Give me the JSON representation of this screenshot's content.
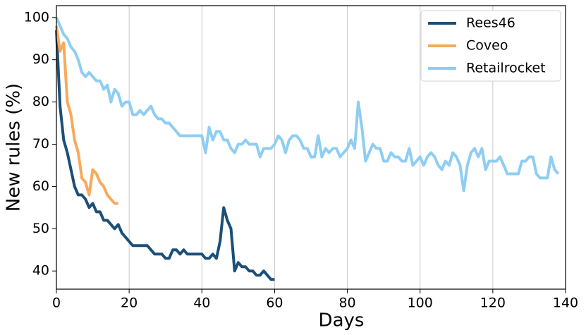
{
  "chart_data": {
    "type": "line",
    "xlabel": "Days",
    "ylabel": "New rules (%)",
    "xlim": [
      0,
      140
    ],
    "ylim": [
      35.7,
      102.8
    ],
    "xticks": [
      0,
      20,
      40,
      60,
      80,
      100,
      120,
      140
    ],
    "yticks": [
      40,
      50,
      60,
      70,
      80,
      90,
      100
    ],
    "grid": "x",
    "legend": "upper right",
    "series": [
      {
        "name": "Rees46",
        "color": "#1b4f78",
        "x": [
          0,
          1,
          2,
          3,
          4,
          5,
          6,
          7,
          8,
          9,
          10,
          11,
          12,
          13,
          14,
          15,
          16,
          17,
          18,
          19,
          20,
          21,
          22,
          23,
          24,
          25,
          26,
          27,
          28,
          29,
          30,
          31,
          32,
          33,
          34,
          35,
          36,
          37,
          38,
          39,
          40,
          41,
          42,
          43,
          44,
          45,
          46,
          47,
          48,
          49,
          50,
          51,
          52,
          53,
          54,
          55,
          56,
          57,
          58,
          59,
          60
        ],
        "values": [
          97,
          79,
          71,
          68,
          64,
          60,
          58,
          58,
          57,
          55,
          56,
          54,
          54,
          52,
          52,
          51,
          50,
          51,
          49,
          48,
          47,
          46,
          46,
          46,
          46,
          46,
          45,
          44,
          44,
          44,
          43,
          43,
          45,
          45,
          44,
          45,
          44,
          44,
          44,
          44,
          44,
          43,
          43,
          44,
          43,
          47,
          55,
          52,
          50,
          40,
          42,
          41,
          41,
          40,
          40,
          39,
          39,
          40,
          39,
          38,
          38
        ]
      },
      {
        "name": "Coveo",
        "color": "#f8a95c",
        "x": [
          0,
          1,
          2,
          3,
          4,
          5,
          6,
          7,
          8,
          9,
          10,
          11,
          12,
          13,
          14,
          15,
          16,
          17
        ],
        "values": [
          98,
          92,
          94,
          80,
          77,
          71,
          68,
          62,
          61,
          58,
          64,
          63,
          61,
          60,
          58,
          57,
          56,
          56
        ]
      },
      {
        "name": "Retailrocket",
        "color": "#8fcdf3",
        "x": [
          0,
          1,
          2,
          3,
          4,
          5,
          6,
          7,
          8,
          9,
          10,
          11,
          12,
          13,
          14,
          15,
          16,
          17,
          18,
          19,
          20,
          21,
          22,
          23,
          24,
          25,
          26,
          27,
          28,
          29,
          30,
          31,
          32,
          33,
          34,
          35,
          36,
          37,
          38,
          39,
          40,
          41,
          42,
          43,
          44,
          45,
          46,
          47,
          48,
          49,
          50,
          51,
          52,
          53,
          54,
          55,
          56,
          57,
          58,
          59,
          60,
          61,
          62,
          63,
          64,
          65,
          66,
          67,
          68,
          69,
          70,
          71,
          72,
          73,
          74,
          75,
          76,
          77,
          78,
          79,
          80,
          81,
          82,
          83,
          84,
          85,
          86,
          87,
          88,
          89,
          90,
          91,
          92,
          93,
          94,
          95,
          96,
          97,
          98,
          99,
          100,
          101,
          102,
          103,
          104,
          105,
          106,
          107,
          108,
          109,
          110,
          111,
          112,
          113,
          114,
          115,
          116,
          117,
          118,
          119,
          120,
          121,
          122,
          123,
          124,
          125,
          126,
          127,
          128,
          129,
          130,
          131,
          132,
          133,
          134,
          135,
          136,
          137,
          138
        ],
        "values": [
          100,
          98,
          96,
          95,
          93,
          92,
          90,
          87,
          86,
          87,
          86,
          85,
          85,
          83,
          84,
          80,
          83,
          82,
          79,
          80,
          80,
          77,
          77,
          78,
          77,
          78,
          79,
          77,
          76,
          76,
          75,
          75,
          74,
          73,
          72,
          72,
          72,
          72,
          72,
          72,
          72,
          68,
          74,
          71,
          73,
          73,
          71,
          71,
          69,
          68,
          70,
          70,
          71,
          70,
          70,
          70,
          67,
          69,
          69,
          69,
          70,
          72,
          71,
          68,
          71,
          72,
          72,
          71,
          69,
          69,
          67,
          67,
          72,
          67,
          69,
          68,
          69,
          69,
          67,
          68,
          69,
          71,
          69,
          80,
          74,
          66,
          68,
          70,
          69,
          69,
          66,
          66,
          68,
          67,
          67,
          66,
          66,
          69,
          65,
          66,
          67,
          65,
          67,
          68,
          67,
          65,
          64,
          66,
          65,
          68,
          67,
          65,
          59,
          65,
          68,
          69,
          67,
          69,
          64,
          66,
          66,
          66,
          67,
          65,
          63,
          63,
          63,
          63,
          66,
          66,
          67,
          67,
          63,
          62,
          62,
          62,
          67,
          64,
          63
        ]
      }
    ]
  }
}
